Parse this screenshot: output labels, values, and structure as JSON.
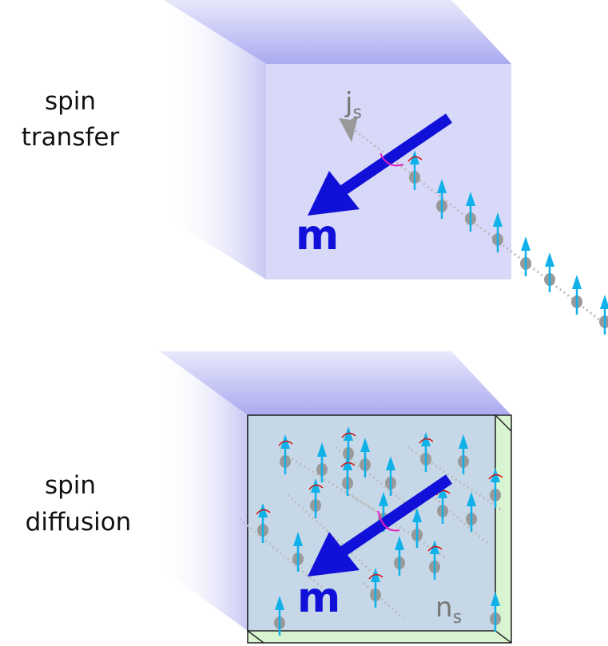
{
  "panels": [
    {
      "label": [
        "spin",
        "transfer"
      ],
      "magnet": "m",
      "flow": {
        "symbol": "j",
        "subscript": "s"
      }
    },
    {
      "label": [
        "spin",
        "diffusion"
      ],
      "magnet": "m",
      "flow": {
        "symbol": "n",
        "subscript": "s"
      }
    }
  ]
}
